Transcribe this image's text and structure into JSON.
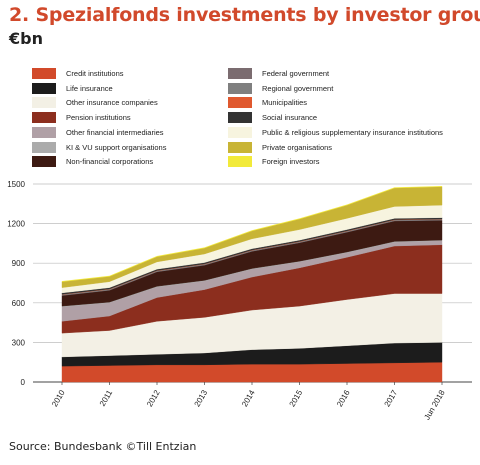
{
  "header": {
    "title": "2. Spezialfonds investments by investor group",
    "unit": "€bn"
  },
  "source": "Source: Bundesbank ©Till Entzian",
  "chart_data": {
    "type": "area",
    "stacked": true,
    "categories": [
      "2010",
      "2011",
      "2012",
      "2013",
      "2014",
      "2015",
      "2016",
      "2017",
      "Jun 2018"
    ],
    "ylim": [
      0,
      1500
    ],
    "yticks": [
      "0",
      "300",
      "600",
      "900",
      "1200",
      "1500"
    ],
    "grid": "horizontal",
    "legend_position": "top",
    "series": [
      {
        "name": "Credit institutions",
        "color": "#d24a2a",
        "values": [
          120,
          125,
          130,
          130,
          135,
          135,
          140,
          145,
          150
        ]
      },
      {
        "name": "Life insurance",
        "color": "#1c1c1c",
        "values": [
          70,
          75,
          80,
          90,
          110,
          120,
          135,
          150,
          150
        ]
      },
      {
        "name": "Other insurance companies",
        "color": "#f3f0e5",
        "values": [
          180,
          190,
          250,
          270,
          300,
          320,
          350,
          375,
          370
        ]
      },
      {
        "name": "Pension institutions",
        "color": "#8c2e1e",
        "values": [
          90,
          110,
          180,
          210,
          250,
          290,
          320,
          360,
          370
        ]
      },
      {
        "name": "Other financial intermediaries",
        "color": "#b0a0a6",
        "values": [
          110,
          100,
          80,
          65,
          60,
          45,
          35,
          30,
          30
        ]
      },
      {
        "name": "KI & VU support organisations",
        "color": "#ababab",
        "values": [
          5,
          5,
          5,
          5,
          5,
          5,
          5,
          5,
          5
        ]
      },
      {
        "name": "Non-financial corporations",
        "color": "#3d1a12",
        "values": [
          80,
          90,
          110,
          115,
          130,
          140,
          150,
          155,
          150
        ]
      },
      {
        "name": "Federal government",
        "color": "#7b6c70",
        "values": [
          3,
          3,
          3,
          3,
          3,
          3,
          3,
          3,
          3
        ]
      },
      {
        "name": "Regional government",
        "color": "#7f7f7f",
        "values": [
          5,
          5,
          5,
          5,
          5,
          5,
          5,
          5,
          5
        ]
      },
      {
        "name": "Municipalities",
        "color": "#e0592f",
        "values": [
          2,
          2,
          2,
          2,
          2,
          2,
          2,
          2,
          2
        ]
      },
      {
        "name": "Social insurance",
        "color": "#333333",
        "values": [
          10,
          10,
          10,
          10,
          10,
          10,
          10,
          10,
          10
        ]
      },
      {
        "name": "Public & religious supplementary insurance institutions",
        "color": "#f7f4df",
        "values": [
          40,
          45,
          55,
          65,
          75,
          80,
          85,
          90,
          95
        ]
      },
      {
        "name": "Private organisations",
        "color": "#c8b435",
        "values": [
          45,
          40,
          40,
          45,
          60,
          80,
          100,
          140,
          140
        ]
      },
      {
        "name": "Foreign investors",
        "color": "#f2ea3a",
        "values": [
          3,
          3,
          3,
          3,
          3,
          3,
          3,
          3,
          3
        ]
      }
    ]
  }
}
